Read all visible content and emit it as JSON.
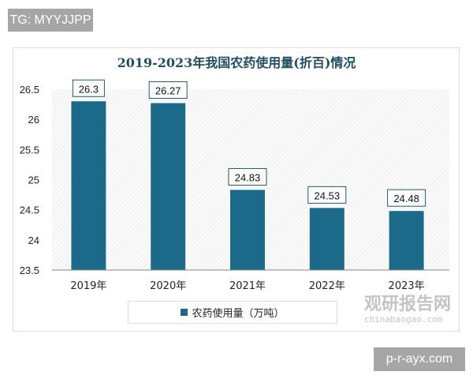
{
  "watermark_tg": "TG: MYYJJPP",
  "watermark_site": "p-r-ayx.com",
  "watermark_logo": {
    "cn": "观研报告网",
    "en": "chinabaogao.com"
  },
  "colors": {
    "bar": "#1b6a8a",
    "title": "#1f4e63"
  },
  "chart_data": {
    "type": "bar",
    "title": "2019-2023年我国农药使用量(折百)情况",
    "categories": [
      "2019年",
      "2020年",
      "2021年",
      "2022年",
      "2023年"
    ],
    "series": [
      {
        "name": "农药使用量（万吨）",
        "values": [
          26.3,
          26.27,
          24.83,
          24.53,
          24.48
        ]
      }
    ],
    "data_labels": [
      "26.3",
      "26.27",
      "24.83",
      "24.53",
      "24.48"
    ],
    "ylim": [
      23.5,
      26.5
    ],
    "yticks": [
      "23.5",
      "24",
      "24.5",
      "25",
      "25.5",
      "26",
      "26.5"
    ],
    "grid": false,
    "legend": "bottom"
  }
}
